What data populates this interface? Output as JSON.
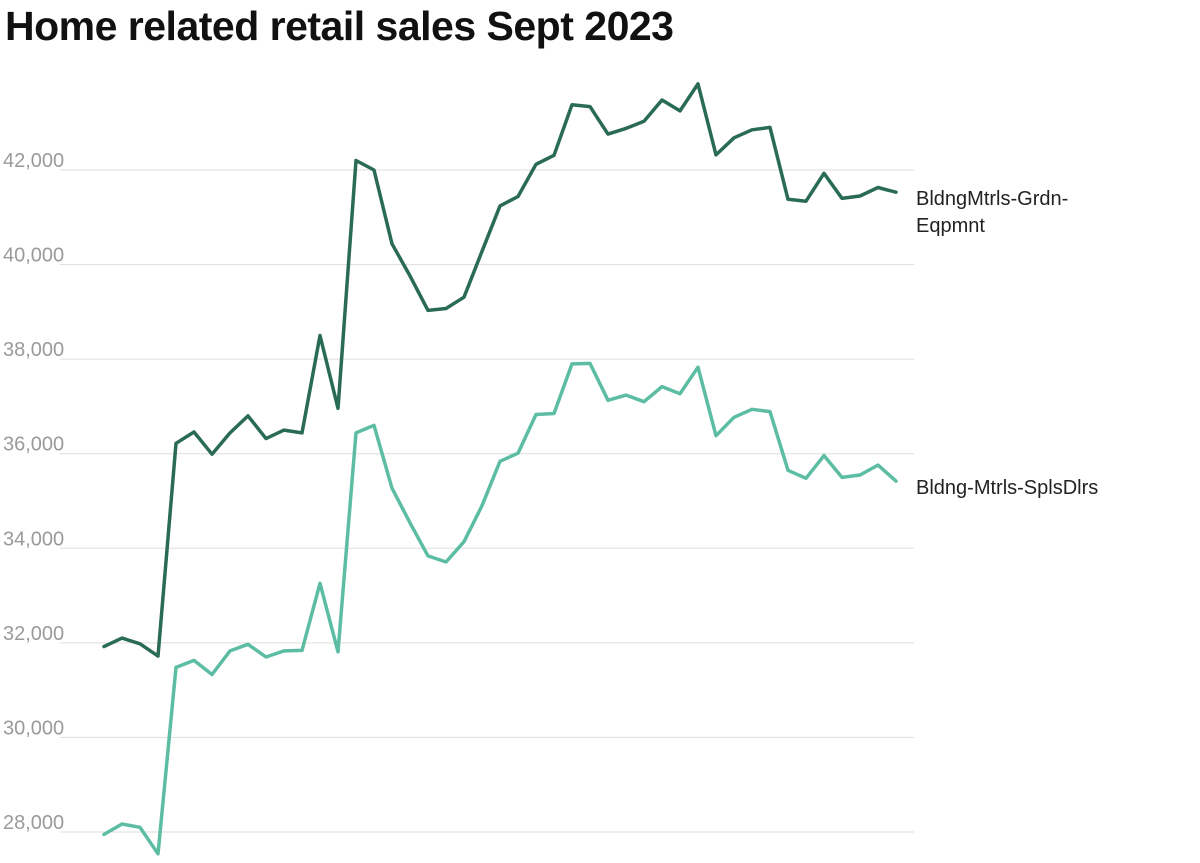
{
  "chart_data": {
    "type": "line",
    "title": "Home related retail sales Sept 2023",
    "xlabel": "",
    "ylabel": "",
    "ylim": [
      27700,
      43800
    ],
    "grid": true,
    "y_ticks": [
      {
        "value": 28000,
        "label": "28,000"
      },
      {
        "value": 30000,
        "label": "30,000"
      },
      {
        "value": 32000,
        "label": "32,000"
      },
      {
        "value": 34000,
        "label": "34,000"
      },
      {
        "value": 36000,
        "label": "36,000"
      },
      {
        "value": 38000,
        "label": "38,000"
      },
      {
        "value": 40000,
        "label": "40,000"
      },
      {
        "value": 42000,
        "label": "42,000"
      }
    ],
    "series": [
      {
        "name_lines": [
          "BldngMtrls-Grdn-",
          "Eqpmnt"
        ],
        "color": "#2a6b54",
        "values": [
          31920,
          32100,
          31980,
          31720,
          36220,
          36460,
          35990,
          36440,
          36800,
          36320,
          36500,
          36440,
          38500,
          36960,
          42200,
          42000,
          40440,
          39760,
          39030,
          39070,
          39310,
          40280,
          41240,
          41440,
          42120,
          42310,
          43380,
          43340,
          42760,
          42880,
          43030,
          43480,
          43250,
          43820,
          42320,
          42680,
          42850,
          42900,
          41380,
          41340,
          41930,
          41400,
          41450,
          41630,
          41530
        ]
      },
      {
        "name": "Bldng-Mtrls-SplsDlrs",
        "color": "#5cbda3",
        "values": [
          27950,
          28170,
          28100,
          27540,
          31480,
          31630,
          31330,
          31830,
          31970,
          31700,
          31830,
          31840,
          33260,
          31810,
          36440,
          36600,
          35270,
          34540,
          33840,
          33710,
          34140,
          34900,
          35840,
          36010,
          36830,
          36850,
          37900,
          37910,
          37130,
          37240,
          37100,
          37420,
          37270,
          37830,
          36380,
          36770,
          36940,
          36890,
          35650,
          35480,
          35960,
          35500,
          35550,
          35760,
          35420
        ]
      }
    ]
  }
}
